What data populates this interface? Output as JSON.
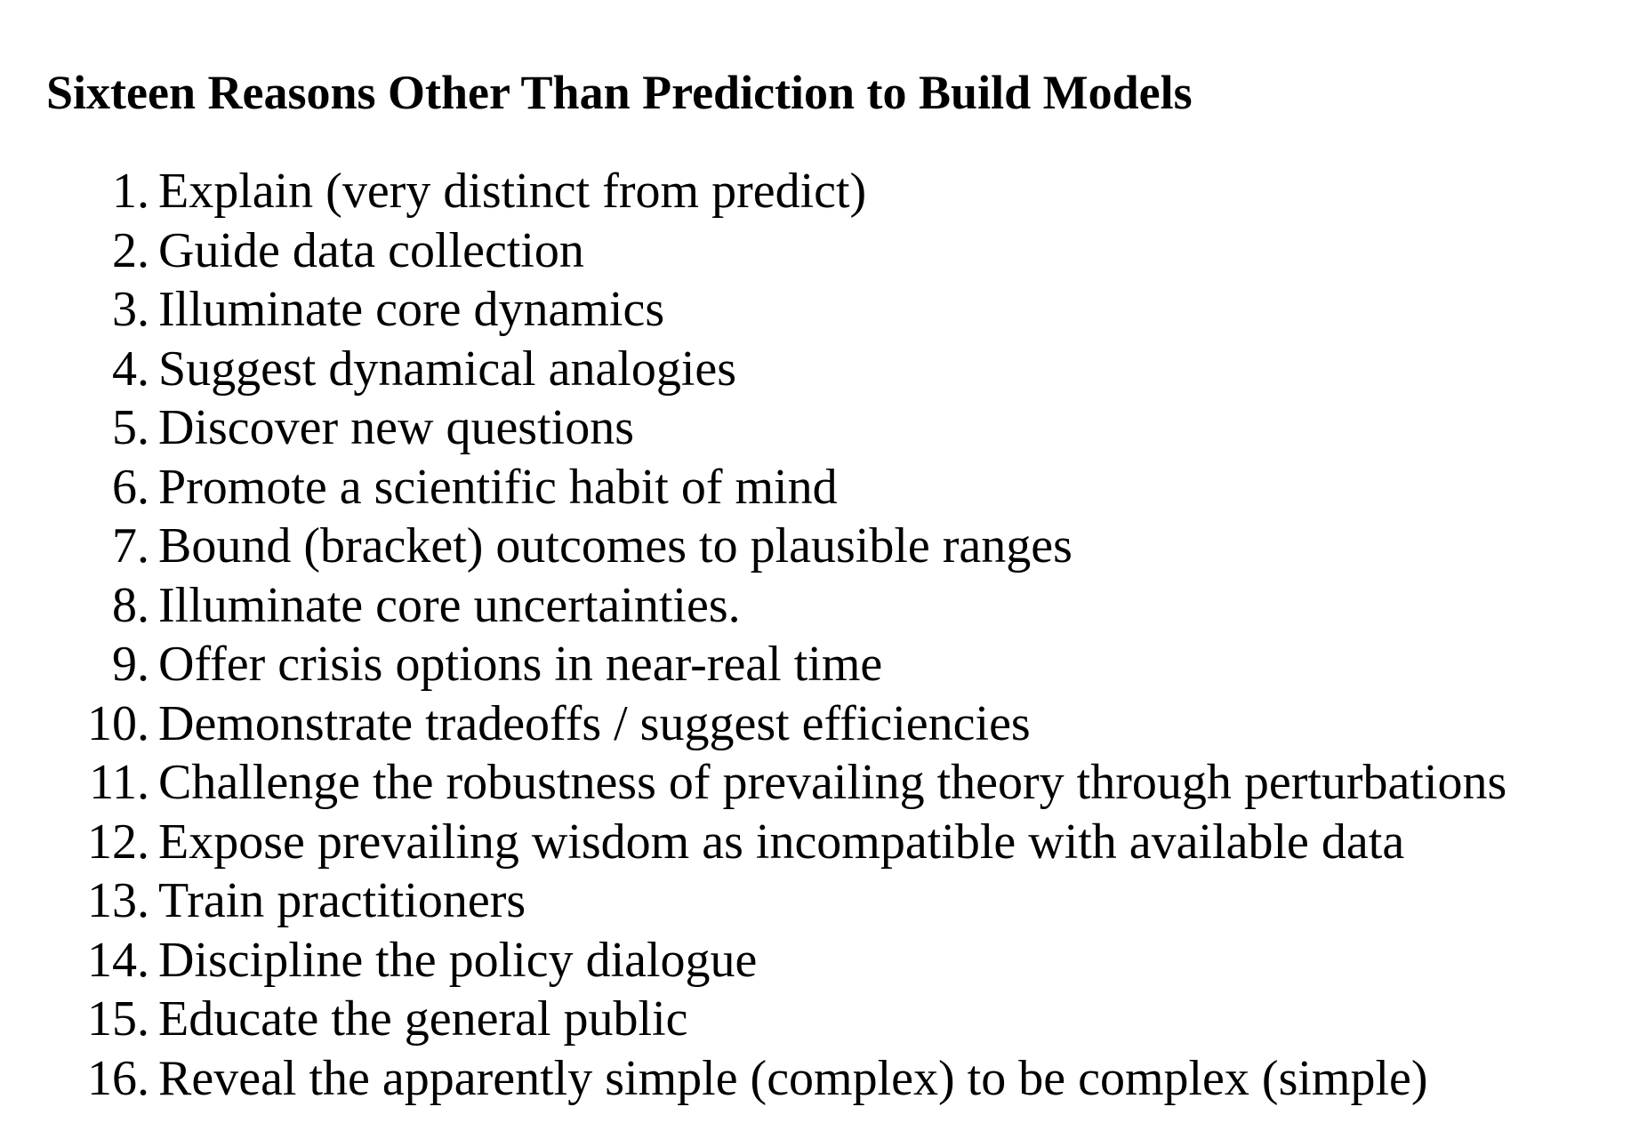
{
  "document": {
    "title": "Sixteen Reasons Other Than Prediction to Build Models",
    "items": [
      {
        "number": "1.",
        "text": "Explain (very distinct from predict)"
      },
      {
        "number": "2.",
        "text": "Guide data collection"
      },
      {
        "number": "3.",
        "text": "Illuminate core dynamics"
      },
      {
        "number": "4.",
        "text": "Suggest dynamical analogies"
      },
      {
        "number": "5.",
        "text": "Discover new questions"
      },
      {
        "number": "6.",
        "text": "Promote a scientific habit of mind"
      },
      {
        "number": "7.",
        "text": "Bound (bracket) outcomes to plausible ranges"
      },
      {
        "number": "8.",
        "text": "Illuminate core uncertainties."
      },
      {
        "number": "9.",
        "text": "Offer crisis options in near-real time"
      },
      {
        "number": "10.",
        "text": "Demonstrate tradeoffs / suggest efficiencies"
      },
      {
        "number": "11.",
        "text": "Challenge the robustness of prevailing theory through perturbations"
      },
      {
        "number": "12.",
        "text": "Expose prevailing wisdom as incompatible with available data"
      },
      {
        "number": "13.",
        "text": "Train practitioners"
      },
      {
        "number": "14.",
        "text": "Discipline the policy dialogue"
      },
      {
        "number": "15.",
        "text": "Educate the general public"
      },
      {
        "number": "16.",
        "text": "Reveal the apparently simple (complex) to be complex (simple)"
      }
    ]
  }
}
